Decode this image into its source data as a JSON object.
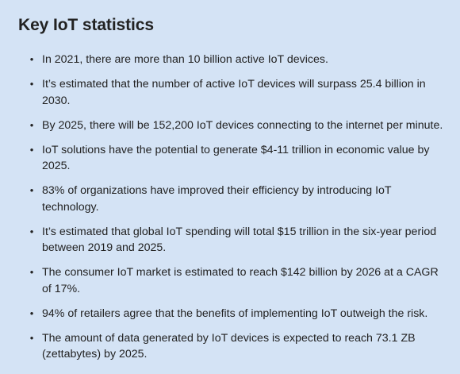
{
  "heading": "Key IoT statistics",
  "bullet_glyph": "•",
  "statistics": [
    "In 2021, there are more than 10 billion active IoT devices.",
    "It’s estimated that the number of active IoT devices will surpass 25.4 billion in 2030.",
    "By 2025, there will be 152,200 IoT devices connecting to the internet per minute.",
    "IoT solutions have the potential to generate $4-11 trillion in economic value by 2025.",
    "83% of organizations have improved their efficiency by introducing IoT technology.",
    "It’s estimated that global IoT spending will total $15 trillion in the six-year period between 2019 and 2025.",
    "The consumer IoT market is estimated to reach $142 billion by 2026 at a CAGR of 17%.",
    "94% of retailers agree that the benefits of implementing IoT outweigh the risk.",
    "The amount of data generated by IoT devices is expected to reach 73.1 ZB (zettabytes) by 2025."
  ],
  "colors": {
    "background": "#d4e3f5",
    "text": "#222222"
  }
}
